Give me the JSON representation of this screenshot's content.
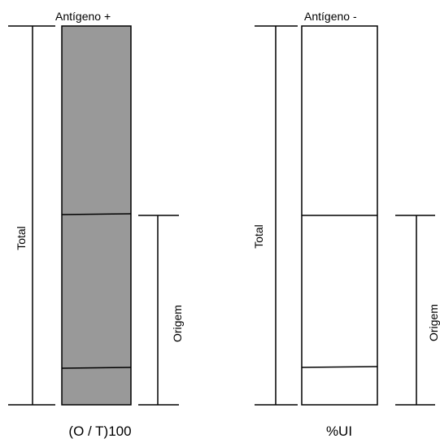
{
  "colors": {
    "positive_fill": "#999999",
    "negative_fill": "#ffffff",
    "line": "#000000"
  },
  "panels": [
    {
      "id": "antigen-positive",
      "column_label": "Antígeno +",
      "total_label": "Total",
      "origin_label": "Origem",
      "formula": "(O / T)100"
    },
    {
      "id": "antigen-negative",
      "column_label": "Antígeno -",
      "total_label": "Total",
      "origin_label": "Origem",
      "formula": "%UI"
    }
  ]
}
